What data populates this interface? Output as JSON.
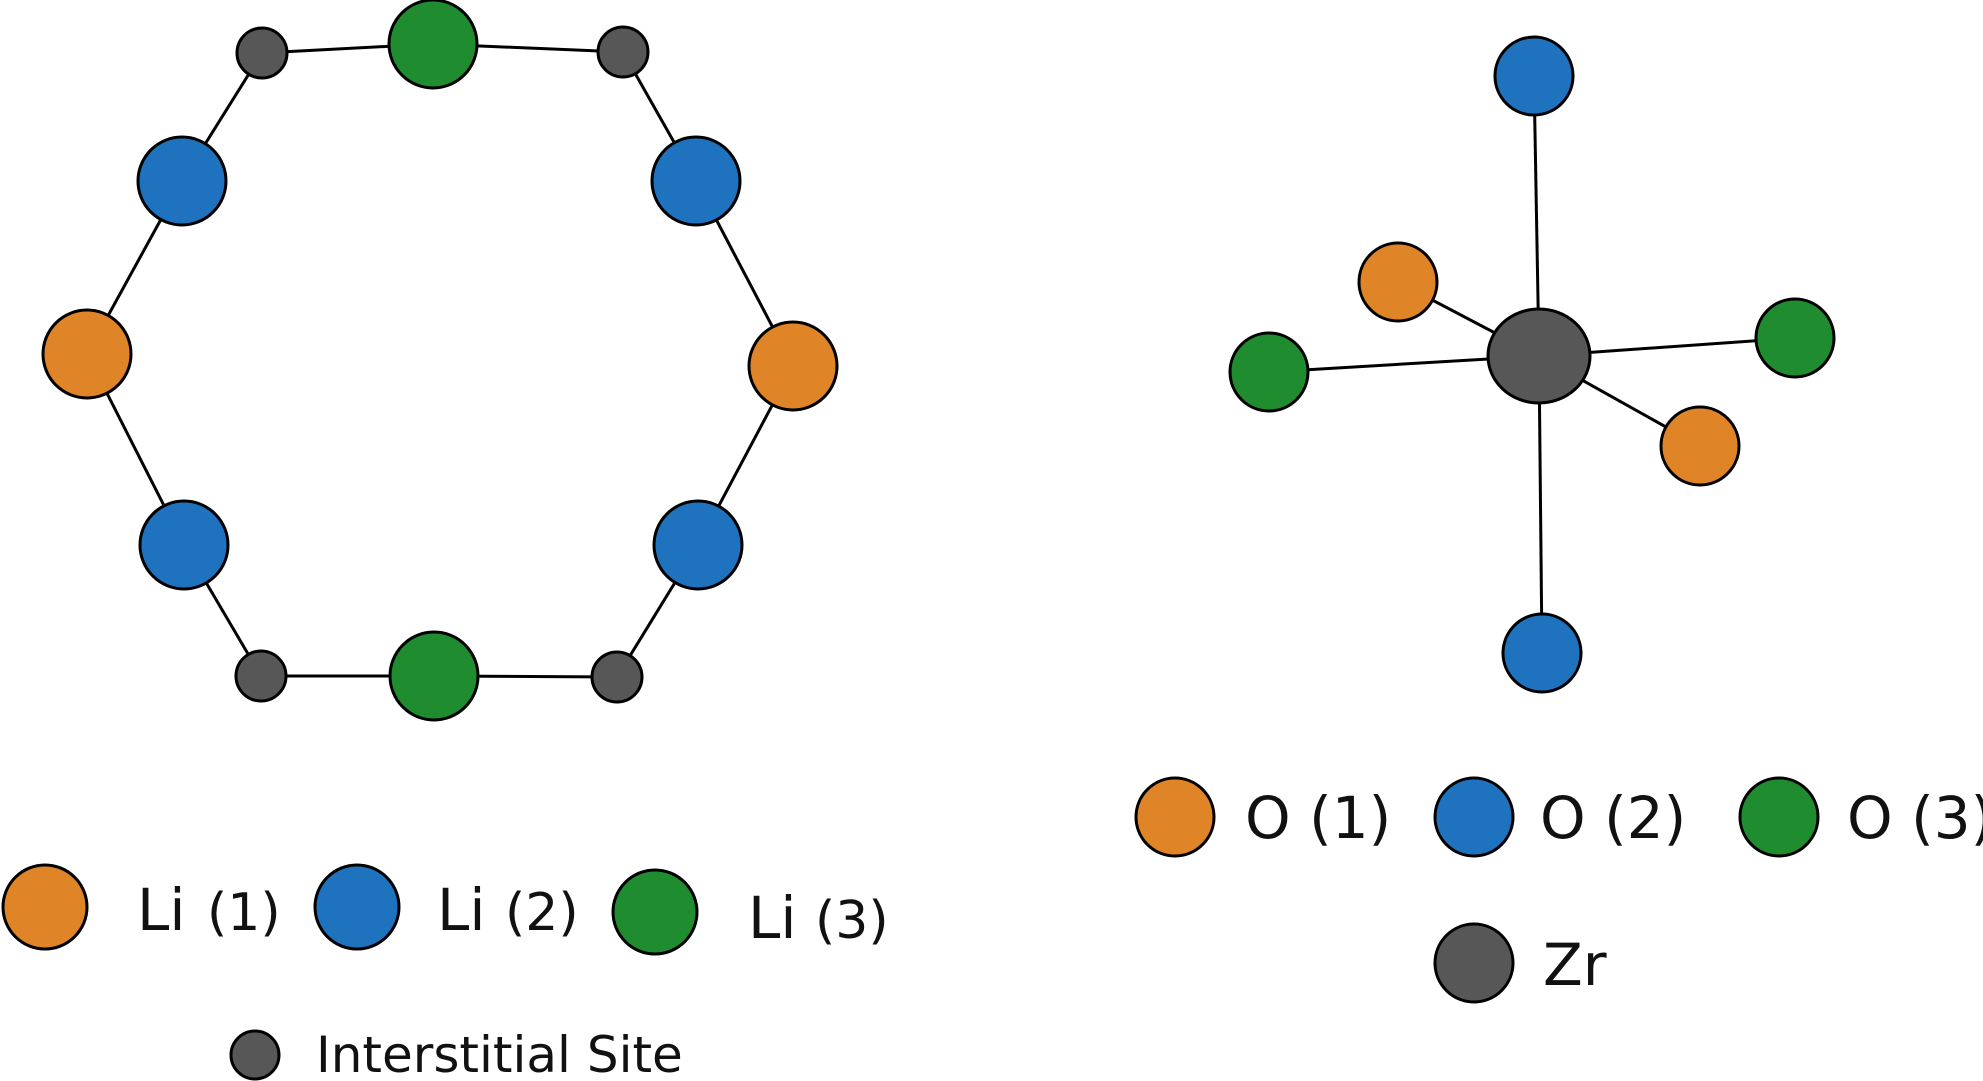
{
  "colors": {
    "orange": "#e08428",
    "blue": "#1f72be",
    "green": "#1f8c2f",
    "gray": "#575757"
  },
  "left_ring": {
    "atoms": [
      {
        "type": "interstitial"
      },
      {
        "type": "li3"
      },
      {
        "type": "interstitial"
      },
      {
        "type": "li2"
      },
      {
        "type": "li1"
      },
      {
        "type": "li2"
      },
      {
        "type": "interstitial"
      },
      {
        "type": "li3"
      },
      {
        "type": "interstitial"
      },
      {
        "type": "li2"
      },
      {
        "type": "li1"
      },
      {
        "type": "li2"
      }
    ]
  },
  "right_center": {
    "center": {
      "type": "zr"
    },
    "ligands": [
      {
        "type": "o2"
      },
      {
        "type": "o1"
      },
      {
        "type": "o3"
      },
      {
        "type": "o3"
      },
      {
        "type": "o1"
      },
      {
        "type": "o2"
      }
    ]
  },
  "legend_left": {
    "li1": {
      "symbol": "Li",
      "index": "(1)"
    },
    "li2": {
      "symbol": "Li",
      "index": "(2)"
    },
    "li3": {
      "symbol": "Li",
      "index": "(3)"
    },
    "interstitial": {
      "label": "Interstitial Site"
    }
  },
  "legend_right": {
    "o1": {
      "label": "O (1)"
    },
    "o2": {
      "label": "O (2)"
    },
    "o3": {
      "label": "O (3)"
    },
    "zr": {
      "label": "Zr"
    }
  }
}
